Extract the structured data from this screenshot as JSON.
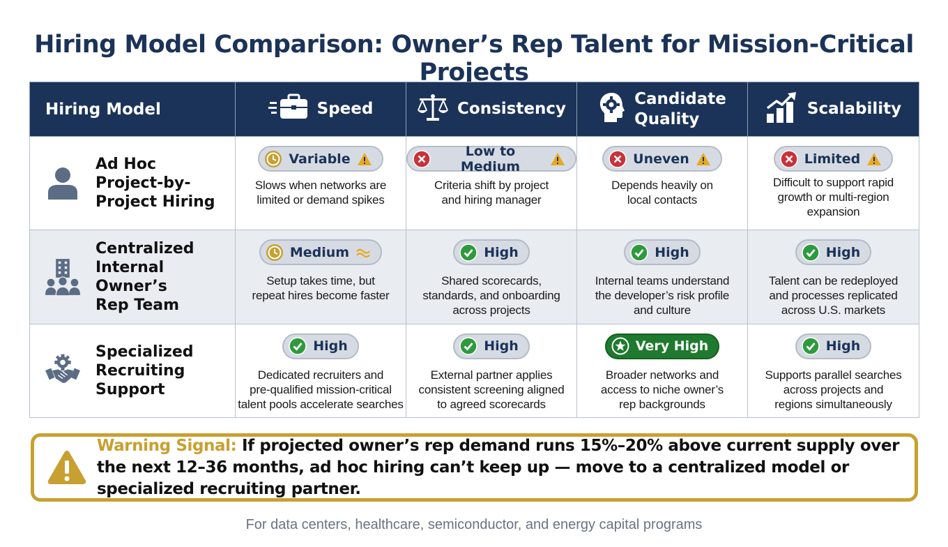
{
  "title": "Hiring Model Comparison: Owner’s Rep Talent for Mission-Critical Projects",
  "header": {
    "model": "Hiring Model",
    "columns": [
      {
        "label": "Speed",
        "icon": "briefcase-icon"
      },
      {
        "label": "Consistency",
        "icon": "scales-icon"
      },
      {
        "label": "Candidate\nQuality",
        "icon": "head-gear-icon"
      },
      {
        "label": "Scalability",
        "icon": "growth-chart-icon"
      }
    ]
  },
  "rows": [
    {
      "name": "Ad Hoc\nProject-by-\nProject Hiring",
      "icon": "person-icon",
      "cells": [
        {
          "rating": "Variable",
          "status": "clock",
          "flag": "warning",
          "desc": "Slows when networks are\nlimited or demand spikes"
        },
        {
          "rating": "Low to Medium",
          "status": "x",
          "flag": "warning",
          "desc": "Criteria shift by project\nand hiring manager"
        },
        {
          "rating": "Uneven",
          "status": "x",
          "flag": "warning",
          "desc": "Depends heavily on\nlocal contacts"
        },
        {
          "rating": "Limited",
          "status": "x",
          "flag": "warning",
          "desc": "Difficult to support rapid\ngrowth or multi-region\nexpansion"
        }
      ]
    },
    {
      "name": "Centralized\nInternal Owner’s\nRep Team",
      "icon": "building-team-icon",
      "cells": [
        {
          "rating": "Medium",
          "status": "clock",
          "flag": "approx",
          "desc": "Setup takes time, but\nrepeat hires become faster"
        },
        {
          "rating": "High",
          "status": "check",
          "flag": "",
          "desc": "Shared scorecards,\nstandards, and onboarding\nacross projects"
        },
        {
          "rating": "High",
          "status": "check",
          "flag": "",
          "desc": "Internal teams understand\nthe developer’s risk profile\nand culture"
        },
        {
          "rating": "High",
          "status": "check",
          "flag": "",
          "desc": "Talent can be redeployed\nand processes replicated\nacross U.S. markets"
        }
      ]
    },
    {
      "name": "Specialized\nRecruiting\nSupport",
      "icon": "handshake-gear-icon",
      "cells": [
        {
          "rating": "High",
          "status": "check",
          "flag": "",
          "desc": "Dedicated recruiters and\npre-qualified mission-critical\ntalent pools accelerate searches"
        },
        {
          "rating": "High",
          "status": "check",
          "flag": "",
          "desc": "External partner applies\nconsistent screening aligned\nto agreed scorecards"
        },
        {
          "rating": "Very High",
          "status": "star",
          "flag": "",
          "desc": "Broader networks and\naccess to niche owner’s\nrep backgrounds"
        },
        {
          "rating": "High",
          "status": "check",
          "flag": "",
          "desc": "Supports parallel searches\nacross projects and\nregions simultaneously"
        }
      ]
    }
  ],
  "warning": {
    "label": "Warning Signal:",
    "text": " If projected owner’s rep demand runs 15%–20% above current supply over the next 12–36 months, ad hoc hiring can’t keep up — move to a centralized model or specialized recruiting partner.",
    "icon": "warning-triangle-icon"
  },
  "footnote": "For data centers, healthcare, semiconductor, and energy capital programs",
  "colors": {
    "navy": "#1b3358",
    "gold": "#c8a031",
    "green": "#2f9a3d",
    "red": "#c8323a",
    "row_shade": "#e9ecf1",
    "very_high_bg": "#1f7a2f"
  }
}
